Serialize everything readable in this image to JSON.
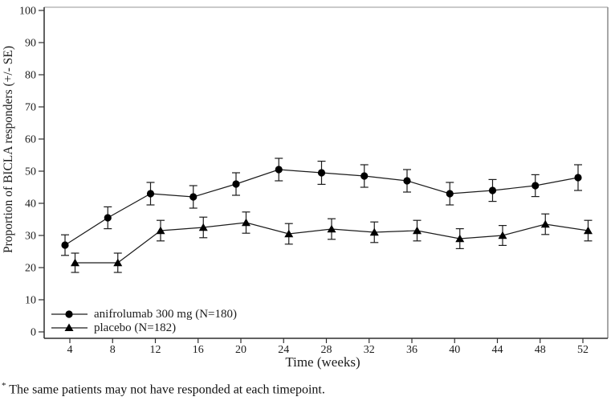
{
  "chart_data": {
    "type": "line",
    "title": "",
    "xlabel": "Time (weeks)",
    "ylabel": "Proportion of BICLA responders (+/- SE)",
    "x_ticks": [
      4,
      8,
      12,
      16,
      20,
      24,
      28,
      32,
      36,
      40,
      44,
      48,
      52
    ],
    "y_ticks": [
      0,
      10,
      20,
      30,
      40,
      50,
      60,
      70,
      80,
      90,
      100
    ],
    "xlim": [
      1.6,
      54.3
    ],
    "ylim": [
      0,
      100
    ],
    "grid": false,
    "legend_position": "inside-bottom-left",
    "weeks": [
      4,
      8,
      12,
      16,
      20,
      24,
      28,
      32,
      36,
      40,
      44,
      48,
      52
    ],
    "series": [
      {
        "name": "anifrolumab 300 mg (N=180)",
        "marker": "circle",
        "values": [
          27,
          35.5,
          43,
          42,
          46,
          50.5,
          49.5,
          48.5,
          47,
          43,
          44,
          45.5,
          48
        ],
        "se": [
          3.2,
          3.4,
          3.5,
          3.5,
          3.5,
          3.5,
          3.6,
          3.5,
          3.5,
          3.5,
          3.4,
          3.4,
          4.0
        ]
      },
      {
        "name": "placebo (N=182)",
        "marker": "triangle",
        "values": [
          21.5,
          21.5,
          31.5,
          32.5,
          34,
          30.5,
          32,
          31,
          31.5,
          29,
          30,
          33.5,
          31.5
        ],
        "se": [
          3.0,
          3.0,
          3.2,
          3.2,
          3.3,
          3.2,
          3.2,
          3.2,
          3.2,
          3.1,
          3.1,
          3.2,
          3.2
        ]
      }
    ]
  },
  "footnote_marker": "*",
  "footnote_text": "The same patients may not have responded at each timepoint.",
  "colors": {
    "line": "#1c1c1c",
    "marker": "#000000",
    "axis": "#2e2e2e",
    "frame_top": "#b8b8b8",
    "frame_right": "#8a8a8a",
    "background": "#ffffff"
  }
}
